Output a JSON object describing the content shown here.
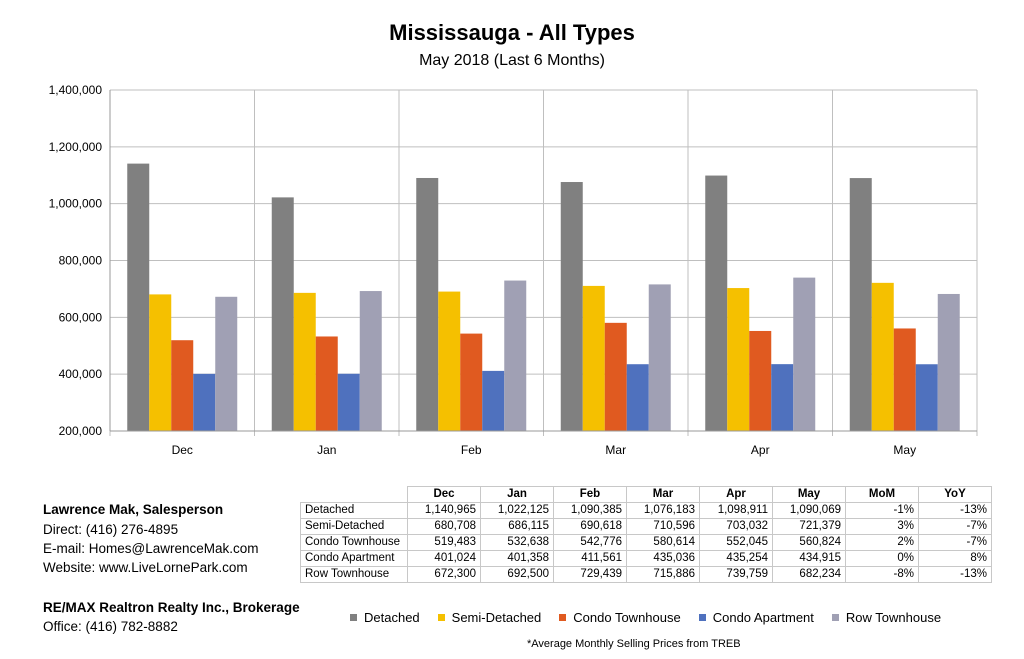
{
  "chart_data": {
    "type": "bar",
    "title": "Mississauga - All Types",
    "subtitle": "May 2018 (Last 6 Months)",
    "categories": [
      "Dec",
      "Jan",
      "Feb",
      "Mar",
      "Apr",
      "May"
    ],
    "ylim": [
      200000,
      1400000
    ],
    "yticks": [
      "200,000",
      "400,000",
      "600,000",
      "800,000",
      "1,000,000",
      "1,200,000",
      "1,400,000"
    ],
    "ytick_values": [
      200000,
      400000,
      600000,
      800000,
      1000000,
      1200000,
      1400000
    ],
    "grid": true,
    "legend_position": "bottom",
    "series": [
      {
        "name": "Detached",
        "color": "#808080",
        "values": [
          1140965,
          1022125,
          1090385,
          1076183,
          1098911,
          1090069
        ]
      },
      {
        "name": "Semi-Detached",
        "color": "#f5c000",
        "values": [
          680708,
          686115,
          690618,
          710596,
          703032,
          721379
        ]
      },
      {
        "name": "Condo Townhouse",
        "color": "#e05a20",
        "values": [
          519483,
          532638,
          542776,
          580614,
          552045,
          560824
        ]
      },
      {
        "name": "Condo Apartment",
        "color": "#4f71be",
        "values": [
          401024,
          401358,
          411561,
          435036,
          435254,
          434915
        ]
      },
      {
        "name": "Row Townhouse",
        "color": "#a0a0b4",
        "values": [
          672300,
          692500,
          729439,
          715886,
          739759,
          682234
        ]
      }
    ]
  },
  "table": {
    "headers": [
      "Dec",
      "Jan",
      "Feb",
      "Mar",
      "Apr",
      "May",
      "MoM",
      "YoY"
    ],
    "rows": [
      {
        "label": "Detached",
        "cells": [
          "1,140,965",
          "1,022,125",
          "1,090,385",
          "1,076,183",
          "1,098,911",
          "1,090,069",
          "-1%",
          "-13%"
        ]
      },
      {
        "label": "Semi-Detached",
        "cells": [
          "680,708",
          "686,115",
          "690,618",
          "710,596",
          "703,032",
          "721,379",
          "3%",
          "-7%"
        ]
      },
      {
        "label": "Condo Townhouse",
        "cells": [
          "519,483",
          "532,638",
          "542,776",
          "580,614",
          "552,045",
          "560,824",
          "2%",
          "-7%"
        ]
      },
      {
        "label": "Condo Apartment",
        "cells": [
          "401,024",
          "401,358",
          "411,561",
          "435,036",
          "435,254",
          "434,915",
          "0%",
          "8%"
        ]
      },
      {
        "label": "Row Townhouse",
        "cells": [
          "672,300",
          "692,500",
          "729,439",
          "715,886",
          "739,759",
          "682,234",
          "-8%",
          "-13%"
        ]
      }
    ]
  },
  "contact": {
    "name": "Lawrence Mak, Salesperson",
    "direct": "Direct:  (416) 276-4895",
    "email": "E-mail:  Homes@LawrenceMak.com",
    "website": "Website: www.LiveLornePark.com",
    "brokerage": "RE/MAX Realtron Realty Inc., Brokerage",
    "office": "Office: (416) 782-8882"
  },
  "footnote": "*Average Monthly Selling Prices  from TREB"
}
